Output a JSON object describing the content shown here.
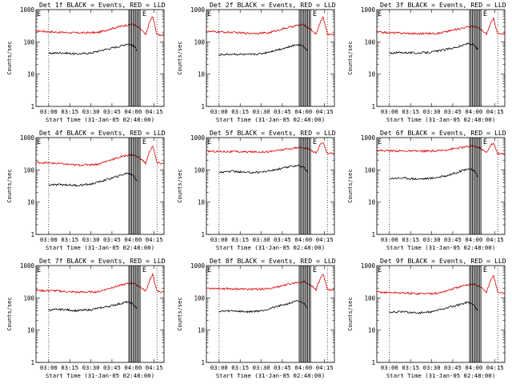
{
  "chart_data": [
    {
      "type": "line",
      "title": "Det 1f BLACK = Events, RED = LLD",
      "ylabel": "Counts/sec",
      "xlabel": "Start Time (31-Jan-05 02:48:00)",
      "yscale": "log",
      "ylim": [
        1,
        1000
      ],
      "xlim": [
        "02:51",
        "04:22"
      ],
      "x_ticks": [
        "03:00",
        "03:15",
        "03:30",
        "03:45",
        "04:00",
        "04:15"
      ],
      "y_ticks": [
        "1",
        "10",
        "100",
        "1000"
      ],
      "legend_marker": "E",
      "series": [
        {
          "color": "#dd0000",
          "x": [
            "02:51",
            "03:05",
            "03:20",
            "03:35",
            "03:45",
            "03:55",
            "04:00",
            "04:05",
            "04:09",
            "04:12",
            "04:14",
            "04:17",
            "04:22"
          ],
          "values": [
            220,
            200,
            190,
            195,
            260,
            330,
            350,
            260,
            165,
            450,
            600,
            170,
            160
          ]
        },
        {
          "color": "#000000",
          "x": [
            "03:00",
            "03:10",
            "03:20",
            "03:30",
            "03:40",
            "03:50",
            "03:56",
            "04:00",
            "04:03"
          ],
          "values": [
            44,
            46,
            42,
            45,
            58,
            72,
            88,
            78,
            55
          ]
        }
      ]
    },
    {
      "type": "line",
      "title": "Det 2f BLACK = Events, RED = LLD",
      "ylabel": "Counts/sec",
      "xlabel": "Start Time (31-Jan-05 02:48:00)",
      "yscale": "log",
      "ylim": [
        1,
        1000
      ],
      "xlim": [
        "02:51",
        "04:22"
      ],
      "x_ticks": [
        "03:00",
        "03:15",
        "03:30",
        "03:45",
        "04:00",
        "04:15"
      ],
      "y_ticks": [
        "1",
        "10",
        "100",
        "1000"
      ],
      "legend_marker": "E",
      "series": [
        {
          "color": "#dd0000",
          "x": [
            "02:51",
            "03:05",
            "03:20",
            "03:35",
            "03:45",
            "03:55",
            "04:00",
            "04:05",
            "04:09",
            "04:12",
            "04:14",
            "04:17",
            "04:22"
          ],
          "values": [
            210,
            200,
            185,
            190,
            250,
            320,
            340,
            250,
            170,
            420,
            580,
            175,
            165
          ]
        },
        {
          "color": "#000000",
          "x": [
            "03:00",
            "03:10",
            "03:20",
            "03:30",
            "03:40",
            "03:50",
            "03:56",
            "04:00",
            "04:03"
          ],
          "values": [
            40,
            42,
            40,
            43,
            55,
            70,
            85,
            75,
            52
          ]
        }
      ]
    },
    {
      "type": "line",
      "title": "Det 3f BLACK = Events, RED = LLD",
      "ylabel": "Counts/sec",
      "xlabel": "Start Time (31-Jan-05 02:48:00)",
      "yscale": "log",
      "ylim": [
        1,
        1000
      ],
      "xlim": [
        "02:51",
        "04:22"
      ],
      "x_ticks": [
        "03:00",
        "03:15",
        "03:30",
        "03:45",
        "04:00",
        "04:15"
      ],
      "y_ticks": [
        "1",
        "10",
        "100",
        "1000"
      ],
      "legend_marker": "E",
      "series": [
        {
          "color": "#dd0000",
          "x": [
            "02:51",
            "03:05",
            "03:20",
            "03:35",
            "03:45",
            "03:55",
            "04:00",
            "04:05",
            "04:09",
            "04:12",
            "04:14",
            "04:17",
            "04:22"
          ],
          "values": [
            200,
            190,
            180,
            185,
            230,
            290,
            310,
            240,
            175,
            380,
            520,
            180,
            170
          ]
        },
        {
          "color": "#000000",
          "x": [
            "03:00",
            "03:10",
            "03:20",
            "03:30",
            "03:40",
            "03:50",
            "03:56",
            "04:00",
            "04:03"
          ],
          "values": [
            45,
            47,
            45,
            48,
            58,
            72,
            90,
            80,
            56
          ]
        }
      ]
    },
    {
      "type": "line",
      "title": "Det 4f BLACK = Events, RED = LLD",
      "ylabel": "Counts/sec",
      "xlabel": "Start Time (31-Jan-05 02:48:00)",
      "yscale": "log",
      "ylim": [
        1,
        1000
      ],
      "xlim": [
        "02:51",
        "04:22"
      ],
      "x_ticks": [
        "03:00",
        "03:15",
        "03:30",
        "03:45",
        "04:00",
        "04:15"
      ],
      "y_ticks": [
        "1",
        "10",
        "100",
        "1000"
      ],
      "legend_marker": "E",
      "series": [
        {
          "color": "#dd0000",
          "x": [
            "02:51",
            "03:05",
            "03:20",
            "03:35",
            "03:45",
            "03:55",
            "04:00",
            "04:05",
            "04:09",
            "04:12",
            "04:14",
            "04:17",
            "04:22"
          ],
          "values": [
            170,
            160,
            140,
            150,
            210,
            280,
            300,
            230,
            160,
            400,
            560,
            165,
            155
          ]
        },
        {
          "color": "#000000",
          "x": [
            "03:00",
            "03:10",
            "03:20",
            "03:30",
            "03:40",
            "03:50",
            "03:56",
            "04:00",
            "04:03"
          ],
          "values": [
            34,
            35,
            33,
            36,
            48,
            65,
            80,
            70,
            45
          ]
        }
      ]
    },
    {
      "type": "line",
      "title": "Det 5f BLACK = Events, RED = LLD",
      "ylabel": "Counts/sec",
      "xlabel": "Start Time (31-Jan-05 02:48:00)",
      "yscale": "log",
      "ylim": [
        1,
        1000
      ],
      "xlim": [
        "02:51",
        "04:22"
      ],
      "x_ticks": [
        "03:00",
        "03:15",
        "03:30",
        "03:45",
        "04:00",
        "04:15"
      ],
      "y_ticks": [
        "1",
        "10",
        "100",
        "1000"
      ],
      "legend_marker": "E",
      "series": [
        {
          "color": "#dd0000",
          "x": [
            "02:51",
            "03:05",
            "03:20",
            "03:35",
            "03:45",
            "03:55",
            "04:00",
            "04:05",
            "04:09",
            "04:12",
            "04:14",
            "04:17",
            "04:22"
          ],
          "values": [
            380,
            370,
            360,
            365,
            420,
            480,
            500,
            420,
            330,
            620,
            700,
            330,
            320
          ]
        },
        {
          "color": "#000000",
          "x": [
            "03:00",
            "03:10",
            "03:20",
            "03:30",
            "03:40",
            "03:50",
            "03:56",
            "04:00",
            "04:03"
          ],
          "values": [
            85,
            90,
            82,
            86,
            100,
            125,
            140,
            120,
            85
          ]
        }
      ]
    },
    {
      "type": "line",
      "title": "Det 6f BLACK = Events, RED = LLD",
      "ylabel": "Counts/sec",
      "xlabel": "Start Time (31-Jan-05 02:48:00)",
      "yscale": "log",
      "ylim": [
        1,
        1000
      ],
      "xlim": [
        "02:51",
        "04:22"
      ],
      "x_ticks": [
        "03:00",
        "03:15",
        "03:30",
        "03:45",
        "04:00",
        "04:15"
      ],
      "y_ticks": [
        "1",
        "10",
        "100",
        "1000"
      ],
      "legend_marker": "E",
      "series": [
        {
          "color": "#dd0000",
          "x": [
            "02:51",
            "03:05",
            "03:20",
            "03:35",
            "03:45",
            "03:55",
            "04:00",
            "04:05",
            "04:09",
            "04:12",
            "04:14",
            "04:17",
            "04:22"
          ],
          "values": [
            400,
            390,
            380,
            385,
            450,
            520,
            560,
            450,
            340,
            600,
            650,
            320,
            310
          ]
        },
        {
          "color": "#000000",
          "x": [
            "03:00",
            "03:10",
            "03:20",
            "03:30",
            "03:40",
            "03:50",
            "03:56",
            "04:00",
            "04:03"
          ],
          "values": [
            55,
            56,
            52,
            55,
            65,
            90,
            110,
            95,
            60
          ]
        }
      ]
    },
    {
      "type": "line",
      "title": "Det 7f BLACK = Events, RED = LLD",
      "ylabel": "Counts/sec",
      "xlabel": "Start Time (31-Jan-05 02:48:00)",
      "yscale": "log",
      "ylim": [
        1,
        1000
      ],
      "xlim": [
        "02:51",
        "04:22"
      ],
      "x_ticks": [
        "03:00",
        "03:15",
        "03:30",
        "03:45",
        "04:00",
        "04:15"
      ],
      "y_ticks": [
        "1",
        "10",
        "100",
        "1000"
      ],
      "legend_marker": "E",
      "series": [
        {
          "color": "#dd0000",
          "x": [
            "02:51",
            "03:05",
            "03:20",
            "03:35",
            "03:45",
            "03:55",
            "04:00",
            "04:05",
            "04:09",
            "04:12",
            "04:14",
            "04:17",
            "04:22"
          ],
          "values": [
            170,
            165,
            150,
            155,
            210,
            270,
            290,
            220,
            160,
            380,
            520,
            160,
            150
          ]
        },
        {
          "color": "#000000",
          "x": [
            "03:00",
            "03:10",
            "03:20",
            "03:30",
            "03:40",
            "03:50",
            "03:56",
            "04:00",
            "04:03"
          ],
          "values": [
            42,
            44,
            40,
            43,
            52,
            65,
            75,
            65,
            45
          ]
        }
      ]
    },
    {
      "type": "line",
      "title": "Det 8f BLACK = Events, RED = LLD",
      "ylabel": "Counts/sec",
      "xlabel": "Start Time (31-Jan-05 02:48:00)",
      "yscale": "log",
      "ylim": [
        1,
        1000
      ],
      "xlim": [
        "02:51",
        "04:22"
      ],
      "x_ticks": [
        "03:00",
        "03:15",
        "03:30",
        "03:45",
        "04:00",
        "04:15"
      ],
      "y_ticks": [
        "1",
        "10",
        "100",
        "1000"
      ],
      "legend_marker": "E",
      "series": [
        {
          "color": "#dd0000",
          "x": [
            "02:51",
            "03:05",
            "03:20",
            "03:35",
            "03:45",
            "03:55",
            "04:00",
            "04:05",
            "04:09",
            "04:12",
            "04:14",
            "04:17",
            "04:22"
          ],
          "values": [
            200,
            195,
            185,
            190,
            240,
            300,
            320,
            250,
            180,
            420,
            560,
            180,
            170
          ]
        },
        {
          "color": "#000000",
          "x": [
            "03:00",
            "03:10",
            "03:20",
            "03:30",
            "03:40",
            "03:50",
            "03:56",
            "04:00",
            "04:03"
          ],
          "values": [
            38,
            40,
            37,
            40,
            52,
            68,
            80,
            70,
            48
          ]
        }
      ]
    },
    {
      "type": "line",
      "title": "Det 9f BLACK = Events, RED = LLD",
      "ylabel": "Counts/sec",
      "xlabel": "Start Time (31-Jan-05 02:48:00)",
      "yscale": "log",
      "ylim": [
        1,
        1000
      ],
      "xlim": [
        "02:51",
        "04:22"
      ],
      "x_ticks": [
        "03:00",
        "03:15",
        "03:30",
        "03:45",
        "04:00",
        "04:15"
      ],
      "y_ticks": [
        "1",
        "10",
        "100",
        "1000"
      ],
      "legend_marker": "E",
      "series": [
        {
          "color": "#dd0000",
          "x": [
            "02:51",
            "03:05",
            "03:20",
            "03:35",
            "03:45",
            "03:55",
            "04:00",
            "04:05",
            "04:09",
            "04:12",
            "04:14",
            "04:17",
            "04:22"
          ],
          "values": [
            150,
            145,
            135,
            140,
            190,
            250,
            270,
            210,
            150,
            350,
            500,
            150,
            140
          ]
        },
        {
          "color": "#000000",
          "x": [
            "03:00",
            "03:10",
            "03:20",
            "03:30",
            "03:40",
            "03:50",
            "03:56",
            "04:00",
            "04:03"
          ],
          "values": [
            36,
            37,
            34,
            37,
            48,
            62,
            75,
            60,
            40
          ]
        }
      ]
    }
  ]
}
